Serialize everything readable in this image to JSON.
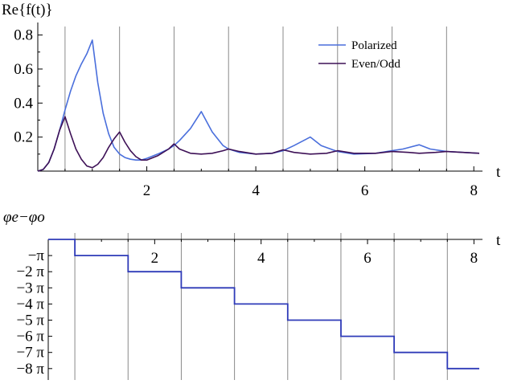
{
  "chart_data": [
    {
      "type": "line",
      "ylabel": "Re{f(t)}",
      "xlabel": "t",
      "xlim": [
        0,
        8.1
      ],
      "ylim": [
        0,
        0.85
      ],
      "xticks": [
        2,
        4,
        6,
        8
      ],
      "yticks": [
        0.2,
        0.4,
        0.6,
        0.8
      ],
      "xtick_labels": [
        "2",
        "4",
        "6",
        "8"
      ],
      "ytick_labels": [
        "0.2",
        "0.4",
        "0.6",
        "0.8"
      ],
      "gridlines_x": [
        0.5,
        1.5,
        2.5,
        3.5,
        4.5,
        5.5,
        6.5,
        7.5
      ],
      "legend_position": "top-right",
      "series": [
        {
          "name": "Polarized",
          "color": "#4a6fdc",
          "points": [
            [
              0,
              0
            ],
            [
              0.1,
              0.01
            ],
            [
              0.2,
              0.05
            ],
            [
              0.3,
              0.13
            ],
            [
              0.4,
              0.24
            ],
            [
              0.5,
              0.36
            ],
            [
              0.6,
              0.47
            ],
            [
              0.7,
              0.56
            ],
            [
              0.8,
              0.63
            ],
            [
              0.9,
              0.69
            ],
            [
              1.0,
              0.77
            ],
            [
              1.1,
              0.52
            ],
            [
              1.2,
              0.34
            ],
            [
              1.3,
              0.22
            ],
            [
              1.4,
              0.14
            ],
            [
              1.5,
              0.1
            ],
            [
              1.6,
              0.08
            ],
            [
              1.7,
              0.07
            ],
            [
              1.8,
              0.065
            ],
            [
              1.9,
              0.065
            ],
            [
              2.0,
              0.075
            ],
            [
              2.2,
              0.1
            ],
            [
              2.4,
              0.13
            ],
            [
              2.5,
              0.15
            ],
            [
              2.6,
              0.18
            ],
            [
              2.8,
              0.25
            ],
            [
              3.0,
              0.35
            ],
            [
              3.2,
              0.23
            ],
            [
              3.4,
              0.15
            ],
            [
              3.5,
              0.13
            ],
            [
              3.7,
              0.11
            ],
            [
              4.0,
              0.1
            ],
            [
              4.3,
              0.105
            ],
            [
              4.5,
              0.12
            ],
            [
              4.7,
              0.15
            ],
            [
              5.0,
              0.2
            ],
            [
              5.2,
              0.15
            ],
            [
              5.5,
              0.115
            ],
            [
              5.8,
              0.1
            ],
            [
              6.2,
              0.105
            ],
            [
              6.5,
              0.12
            ],
            [
              6.7,
              0.13
            ],
            [
              7.0,
              0.155
            ],
            [
              7.2,
              0.13
            ],
            [
              7.5,
              0.115
            ],
            [
              7.8,
              0.11
            ],
            [
              8.1,
              0.105
            ]
          ]
        },
        {
          "name": "Even/Odd",
          "color": "#3d1056",
          "points": [
            [
              0,
              0
            ],
            [
              0.1,
              0.01
            ],
            [
              0.2,
              0.05
            ],
            [
              0.3,
              0.13
            ],
            [
              0.4,
              0.24
            ],
            [
              0.5,
              0.32
            ],
            [
              0.6,
              0.22
            ],
            [
              0.7,
              0.13
            ],
            [
              0.8,
              0.07
            ],
            [
              0.9,
              0.03
            ],
            [
              1.0,
              0.02
            ],
            [
              1.1,
              0.04
            ],
            [
              1.2,
              0.08
            ],
            [
              1.3,
              0.14
            ],
            [
              1.4,
              0.19
            ],
            [
              1.5,
              0.23
            ],
            [
              1.6,
              0.17
            ],
            [
              1.7,
              0.12
            ],
            [
              1.8,
              0.085
            ],
            [
              1.9,
              0.065
            ],
            [
              2.0,
              0.065
            ],
            [
              2.2,
              0.09
            ],
            [
              2.4,
              0.13
            ],
            [
              2.5,
              0.16
            ],
            [
              2.6,
              0.13
            ],
            [
              2.8,
              0.105
            ],
            [
              3.0,
              0.1
            ],
            [
              3.2,
              0.105
            ],
            [
              3.4,
              0.12
            ],
            [
              3.5,
              0.13
            ],
            [
              3.7,
              0.115
            ],
            [
              4.0,
              0.1
            ],
            [
              4.3,
              0.105
            ],
            [
              4.5,
              0.125
            ],
            [
              4.7,
              0.11
            ],
            [
              5.0,
              0.1
            ],
            [
              5.3,
              0.105
            ],
            [
              5.5,
              0.12
            ],
            [
              5.8,
              0.105
            ],
            [
              6.2,
              0.105
            ],
            [
              6.5,
              0.115
            ],
            [
              6.8,
              0.11
            ],
            [
              7.0,
              0.105
            ],
            [
              7.3,
              0.11
            ],
            [
              7.5,
              0.115
            ],
            [
              7.8,
              0.11
            ],
            [
              8.1,
              0.105
            ]
          ]
        }
      ]
    },
    {
      "type": "line",
      "ylabel": "φe−φo",
      "xlabel": "t",
      "xlim": [
        0,
        8.1
      ],
      "ylim": [
        -8.4,
        0.1
      ],
      "xticks": [
        2,
        4,
        6,
        8
      ],
      "xtick_labels": [
        "2",
        "4",
        "6",
        "8"
      ],
      "yticks": [
        -1,
        -2,
        -3,
        -4,
        -5,
        -6,
        -7,
        -8
      ],
      "ytick_labels": [
        "−π",
        "−2 π",
        "−3 π",
        "−4 π",
        "−5 π",
        "−6 π",
        "−7 π",
        "−8 π"
      ],
      "y_unit": "π",
      "gridlines_x": [
        0.5,
        1.5,
        2.5,
        3.5,
        4.5,
        5.5,
        6.5,
        7.5
      ],
      "series": [
        {
          "color": "#2f3bb8",
          "points": [
            [
              0,
              0
            ],
            [
              0.5,
              0
            ],
            [
              0.5,
              -1
            ],
            [
              1.5,
              -1
            ],
            [
              1.5,
              -2
            ],
            [
              2.5,
              -2
            ],
            [
              2.5,
              -3
            ],
            [
              3.5,
              -3
            ],
            [
              3.5,
              -4
            ],
            [
              4.5,
              -4
            ],
            [
              4.5,
              -5
            ],
            [
              5.5,
              -5
            ],
            [
              5.5,
              -6
            ],
            [
              6.5,
              -6
            ],
            [
              6.5,
              -7
            ],
            [
              7.5,
              -7
            ],
            [
              7.5,
              -8
            ],
            [
              8.1,
              -8
            ]
          ]
        }
      ]
    }
  ]
}
